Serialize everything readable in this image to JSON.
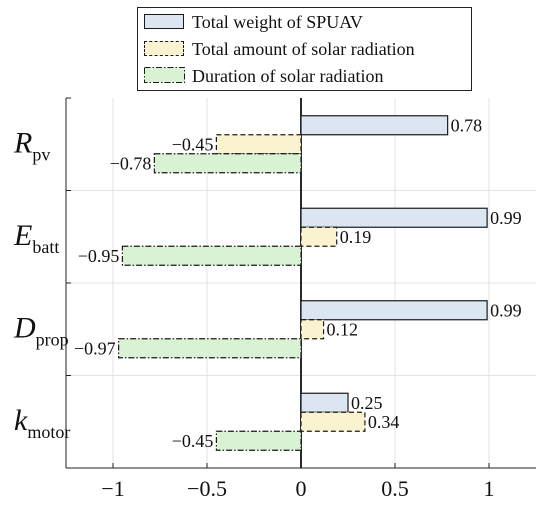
{
  "colors": {
    "weight_fill": "#dbe6f2",
    "amount_fill": "#fbf3cf",
    "duration_fill": "#d8f2d3",
    "edge": "#1a1a1a",
    "grid": "#e3e3e3"
  },
  "chart_data": {
    "type": "bar",
    "orientation": "horizontal",
    "categories": [
      {
        "base": "R",
        "sub": "pv"
      },
      {
        "base": "E",
        "sub": "batt"
      },
      {
        "base": "D",
        "sub": "prop"
      },
      {
        "base": "k",
        "sub": "motor"
      }
    ],
    "series": [
      {
        "name": "Total weight of SPUAV",
        "line": "solid",
        "values": [
          0.78,
          0.99,
          0.99,
          0.25
        ],
        "labels": [
          "0.78",
          "0.99",
          "0.99",
          "0.25"
        ]
      },
      {
        "name": "Total amount of solar radiation",
        "line": "dashed",
        "values": [
          -0.45,
          0.19,
          0.12,
          0.34
        ],
        "labels": [
          "−0.45",
          "0.19",
          "0.12",
          "0.34"
        ]
      },
      {
        "name": "Duration of solar radiation",
        "line": "dashdot",
        "values": [
          -0.78,
          -0.95,
          -0.97,
          -0.45
        ],
        "labels": [
          "−0.78",
          "−0.95",
          "−0.97",
          "−0.45"
        ]
      }
    ],
    "xlim": [
      -1.25,
      1.25
    ],
    "xticks": [
      -1,
      -0.5,
      0,
      0.5,
      1
    ],
    "xtick_labels": [
      "−1",
      "−0.5",
      "0",
      "0.5",
      "1"
    ],
    "grid": true,
    "legend": "top-center"
  }
}
